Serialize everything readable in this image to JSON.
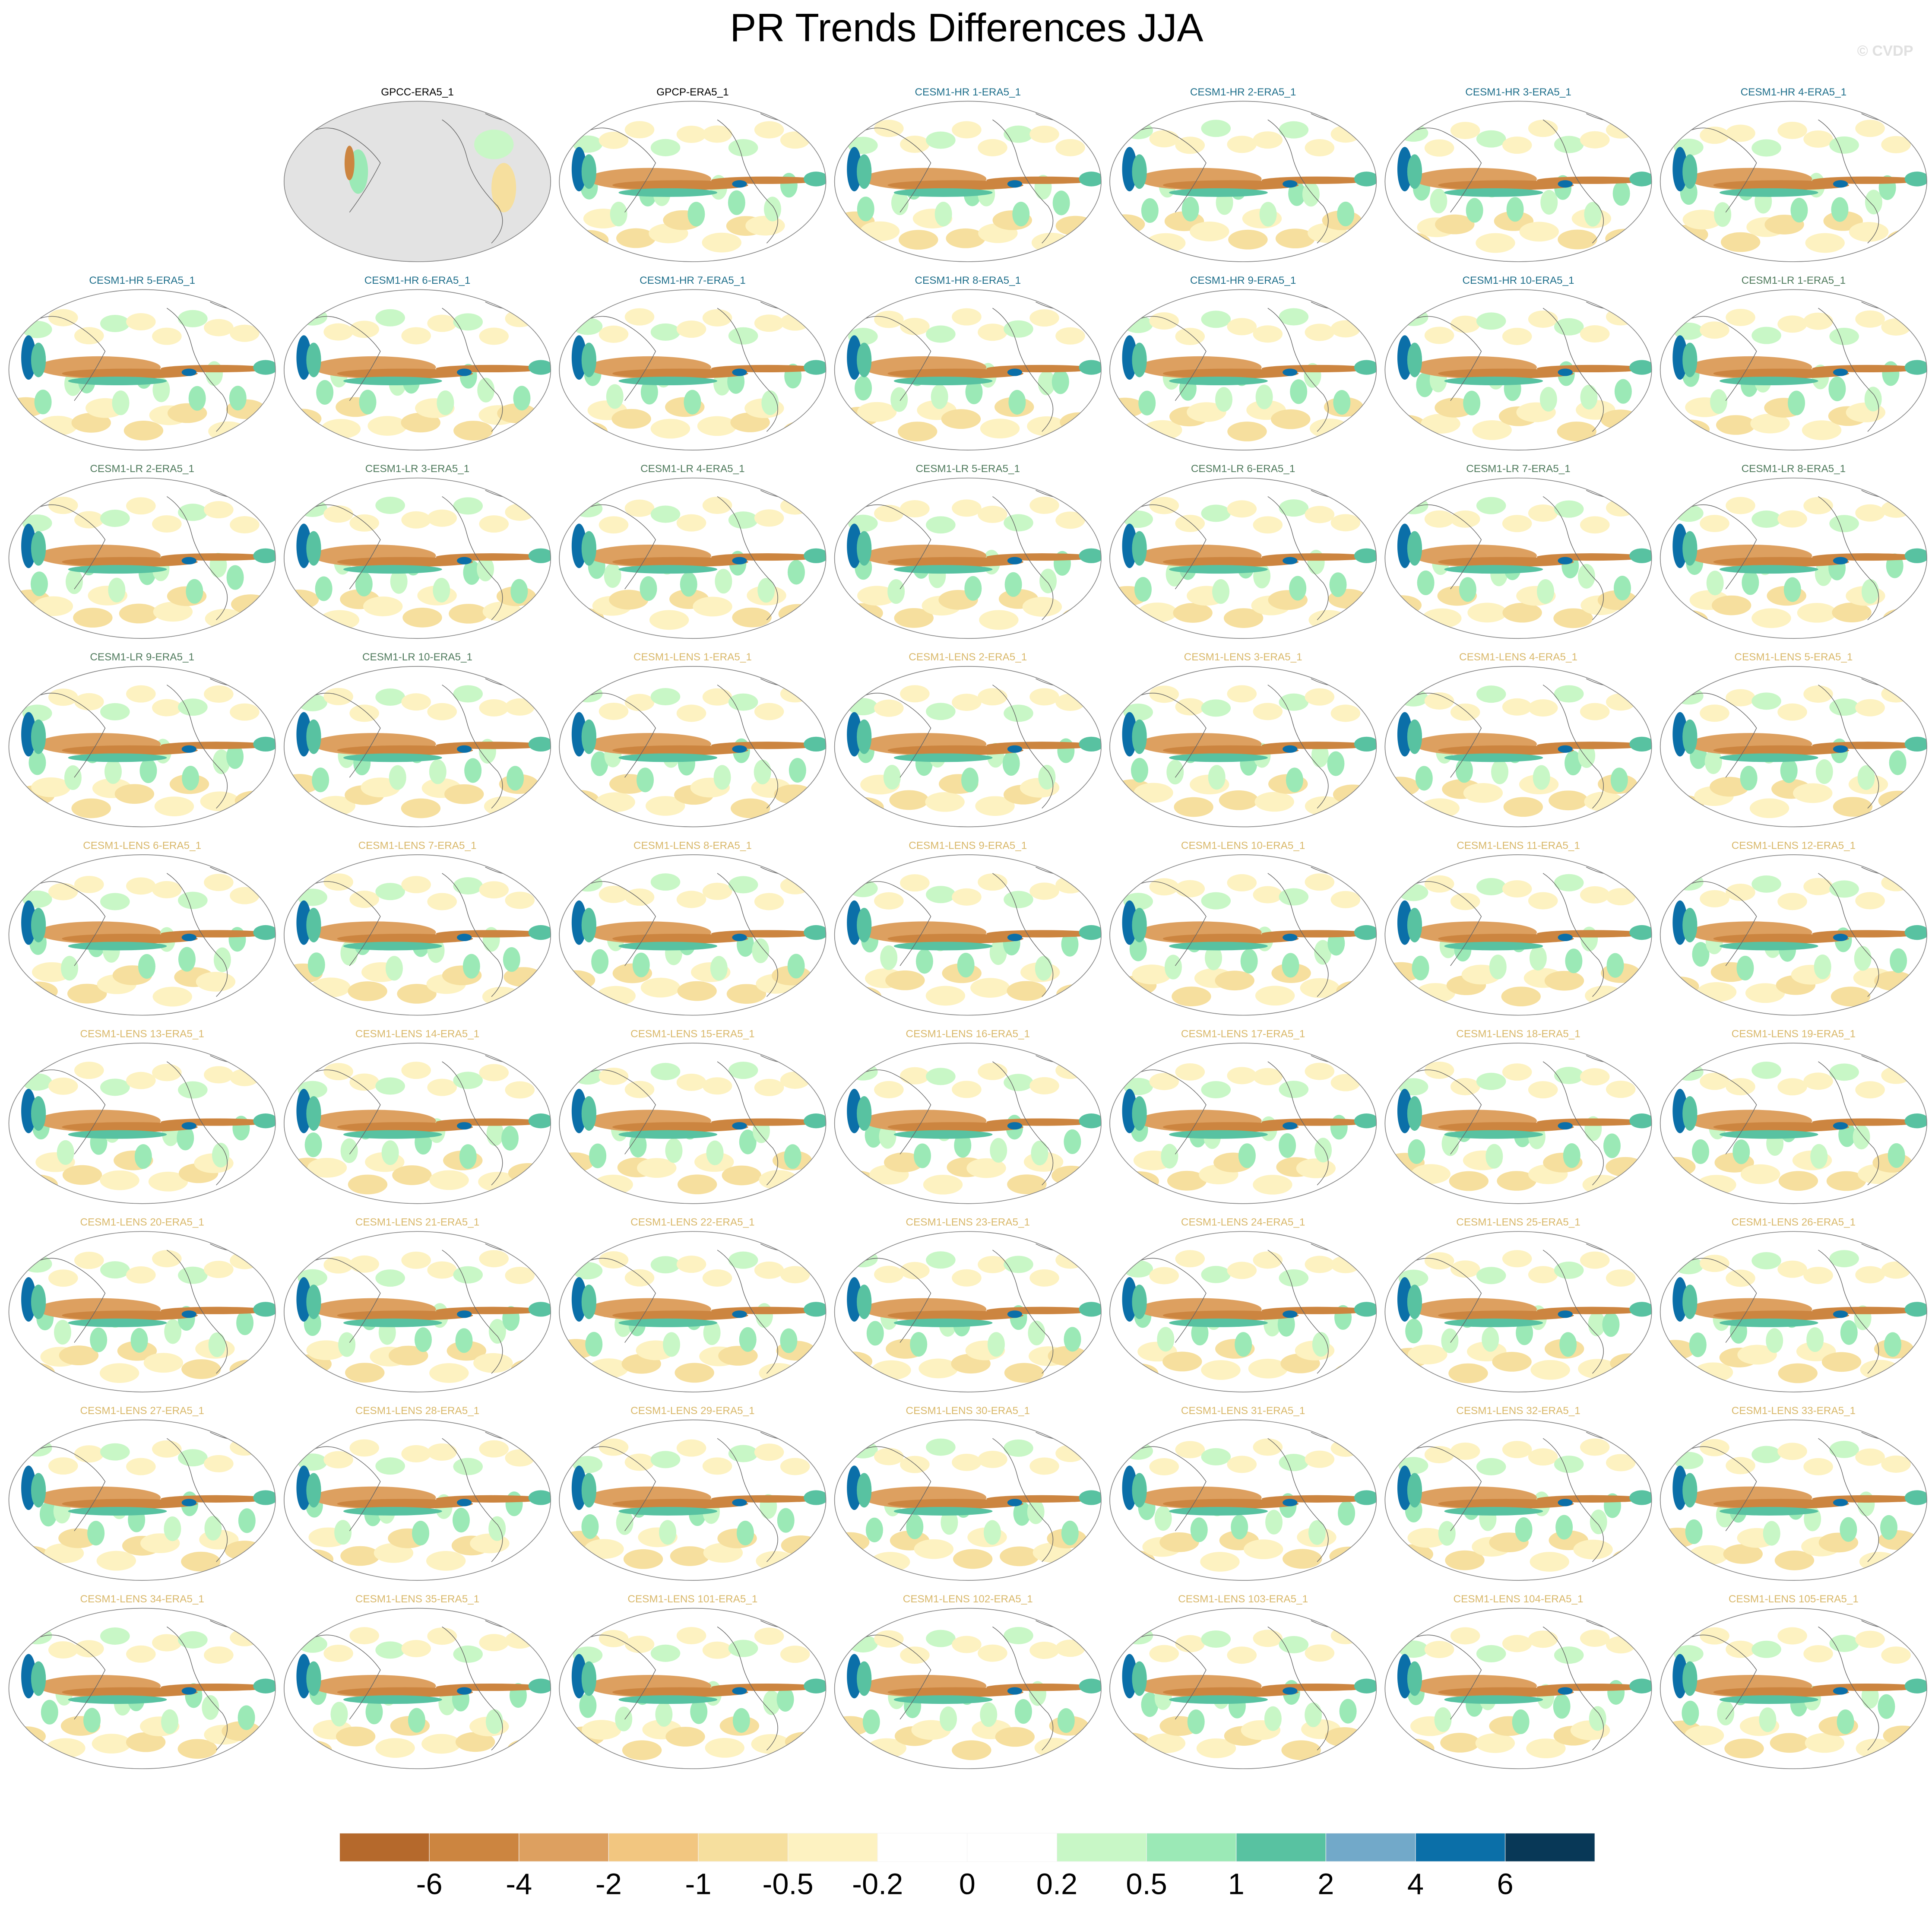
{
  "title": "PR Trends Differences JJA",
  "watermark": "© CVDP",
  "groups": [
    {
      "color": "#000000",
      "panels": [
        "GPCC-ERA5_1",
        "GPCP-ERA5_1"
      ]
    },
    {
      "color": "#1f6f8b",
      "panels": [
        "CESM1-HR 1-ERA5_1",
        "CESM1-HR 2-ERA5_1",
        "CESM1-HR 3-ERA5_1",
        "CESM1-HR 4-ERA5_1",
        "CESM1-HR 5-ERA5_1",
        "CESM1-HR 6-ERA5_1",
        "CESM1-HR 7-ERA5_1",
        "CESM1-HR 8-ERA5_1",
        "CESM1-HR 9-ERA5_1",
        "CESM1-HR 10-ERA5_1"
      ]
    },
    {
      "color": "#4f7a5c",
      "panels": [
        "CESM1-LR 1-ERA5_1",
        "CESM1-LR 2-ERA5_1",
        "CESM1-LR 3-ERA5_1",
        "CESM1-LR 4-ERA5_1",
        "CESM1-LR 5-ERA5_1",
        "CESM1-LR 6-ERA5_1",
        "CESM1-LR 7-ERA5_1",
        "CESM1-LR 8-ERA5_1",
        "CESM1-LR 9-ERA5_1",
        "CESM1-LR 10-ERA5_1"
      ]
    },
    {
      "color": "#d9b86a",
      "panels": [
        "CESM1-LENS 1-ERA5_1",
        "CESM1-LENS 2-ERA5_1",
        "CESM1-LENS 3-ERA5_1",
        "CESM1-LENS 4-ERA5_1",
        "CESM1-LENS 5-ERA5_1",
        "CESM1-LENS 6-ERA5_1",
        "CESM1-LENS 7-ERA5_1",
        "CESM1-LENS 8-ERA5_1",
        "CESM1-LENS 9-ERA5_1",
        "CESM1-LENS 10-ERA5_1",
        "CESM1-LENS 11-ERA5_1",
        "CESM1-LENS 12-ERA5_1",
        "CESM1-LENS 13-ERA5_1",
        "CESM1-LENS 14-ERA5_1",
        "CESM1-LENS 15-ERA5_1",
        "CESM1-LENS 16-ERA5_1",
        "CESM1-LENS 17-ERA5_1",
        "CESM1-LENS 18-ERA5_1",
        "CESM1-LENS 19-ERA5_1",
        "CESM1-LENS 20-ERA5_1",
        "CESM1-LENS 21-ERA5_1",
        "CESM1-LENS 22-ERA5_1",
        "CESM1-LENS 23-ERA5_1",
        "CESM1-LENS 24-ERA5_1",
        "CESM1-LENS 25-ERA5_1",
        "CESM1-LENS 26-ERA5_1",
        "CESM1-LENS 27-ERA5_1",
        "CESM1-LENS 28-ERA5_1",
        "CESM1-LENS 29-ERA5_1",
        "CESM1-LENS 30-ERA5_1",
        "CESM1-LENS 31-ERA5_1",
        "CESM1-LENS 32-ERA5_1",
        "CESM1-LENS 33-ERA5_1",
        "CESM1-LENS 34-ERA5_1",
        "CESM1-LENS 35-ERA5_1",
        "CESM1-LENS 101-ERA5_1",
        "CESM1-LENS 102-ERA5_1",
        "CESM1-LENS 103-ERA5_1",
        "CESM1-LENS 104-ERA5_1",
        "CESM1-LENS 105-ERA5_1"
      ]
    }
  ],
  "colorbar": {
    "colors": [
      "#b5692c",
      "#cc8540",
      "#dda060",
      "#f2c680",
      "#f6df9e",
      "#fdf2c1",
      "#ffffff",
      "#ffffff",
      "#c8f7c6",
      "#9be9b6",
      "#58c2a1",
      "#72a9c9",
      "#0b6fa8",
      "#083857"
    ],
    "ticks": [
      -6,
      -4,
      -2,
      -1,
      -0.5,
      -0.2,
      0,
      0.2,
      0.5,
      1,
      2,
      4,
      6
    ]
  }
}
